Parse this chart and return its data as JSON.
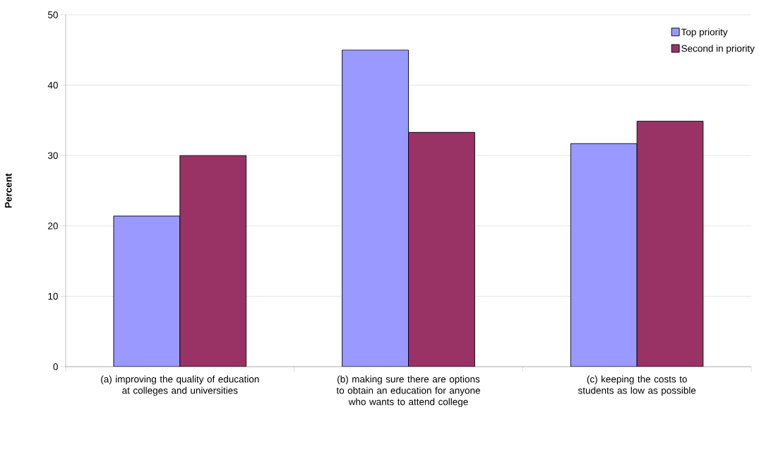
{
  "chart_data": {
    "type": "bar",
    "ylabel": "Percent",
    "categories": [
      "(a) improving the quality of education at colleges and universities",
      "(b) making sure there are options to obtain an education for anyone who wants to attend college",
      "(c) keeping the costs to students as low as possible"
    ],
    "series": [
      {
        "name": "Top priority",
        "color": "#9999ff",
        "values": [
          21.4,
          45.0,
          31.7
        ]
      },
      {
        "name": "Second in priority",
        "color": "#993366",
        "values": [
          30.0,
          33.3,
          34.9
        ]
      }
    ],
    "ylim": [
      0,
      50
    ],
    "yticks": [
      0,
      10,
      20,
      30,
      40,
      50
    ],
    "grid": "y",
    "legend": "top right"
  }
}
